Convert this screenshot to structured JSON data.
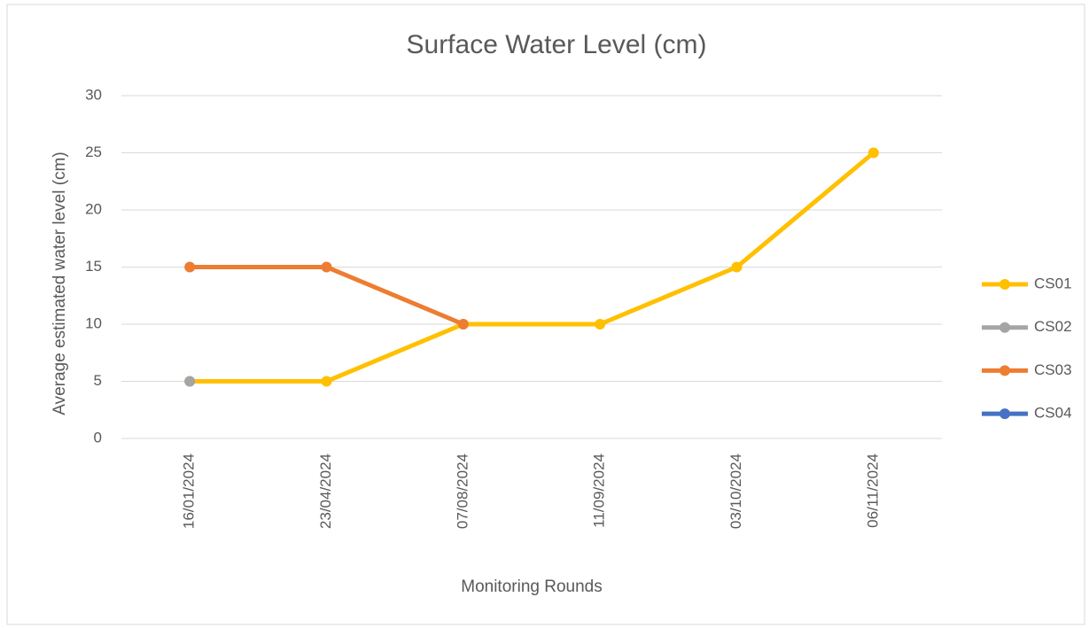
{
  "chart_data": {
    "type": "line",
    "title": "Surface Water Level (cm)",
    "x_label": "Monitoring Rounds",
    "y_label": "Average estimated water level (cm)",
    "categories": [
      "16/01/2024",
      "23/04/2024",
      "07/08/2024",
      "11/09/2024",
      "03/10/2024",
      "06/11/2024"
    ],
    "series": [
      {
        "name": "CS01",
        "color": "#ffc000",
        "values": [
          5,
          5,
          10,
          10,
          15,
          25
        ]
      },
      {
        "name": "CS02",
        "color": "#a5a5a5",
        "values": [
          5,
          null,
          null,
          null,
          null,
          null
        ]
      },
      {
        "name": "CS03",
        "color": "#ed7d31",
        "values": [
          15,
          15,
          10,
          null,
          null,
          null
        ]
      },
      {
        "name": "CS04",
        "color": "#4472c4",
        "values": [
          null,
          null,
          null,
          null,
          null,
          null
        ]
      }
    ],
    "ylim": [
      0,
      30
    ],
    "yticks": [
      0,
      5,
      10,
      15,
      20,
      25,
      30
    ],
    "grid": true,
    "legend": "right"
  }
}
